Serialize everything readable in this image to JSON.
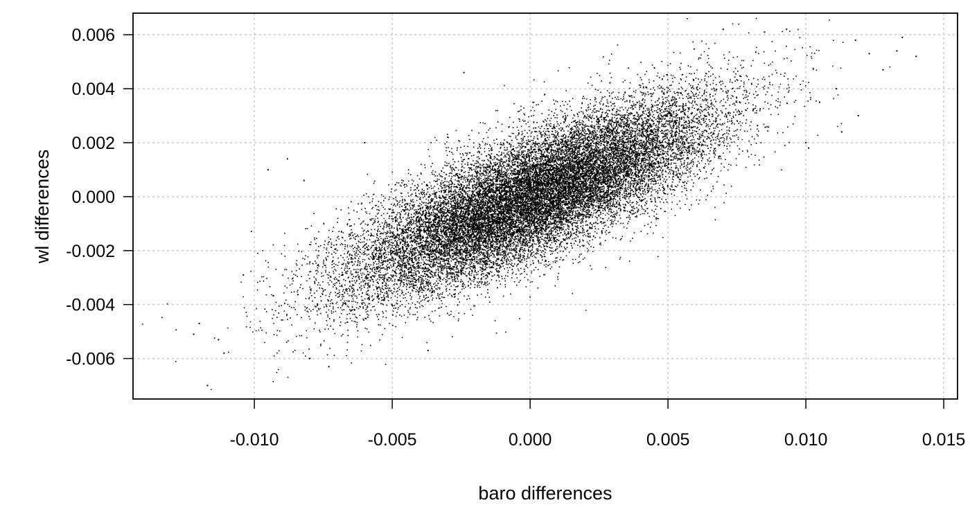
{
  "chart_data": {
    "type": "scatter",
    "title": "",
    "xlabel": "baro differences",
    "ylabel": "wl differences",
    "xlim": [
      -0.0144,
      0.0155
    ],
    "ylim": [
      -0.0075,
      0.0068
    ],
    "x_ticks": [
      -0.01,
      -0.005,
      0.0,
      0.005,
      0.01,
      0.015
    ],
    "x_tick_labels": [
      "-0.010",
      "-0.005",
      "0.000",
      "0.005",
      "0.010",
      "0.015"
    ],
    "y_ticks": [
      -0.006,
      -0.004,
      -0.002,
      0.0,
      0.002,
      0.004,
      0.006
    ],
    "y_tick_labels": [
      "-0.006",
      "-0.004",
      "-0.002",
      "0.000",
      "0.002",
      "0.004",
      "0.006"
    ],
    "grid": true,
    "point_color": "#000000",
    "distribution": {
      "n_points": 22000,
      "x_mean": 0.0,
      "x_sd": 0.0033,
      "y_mean": 0.0,
      "y_sd": 0.0018,
      "correlation": 0.78
    },
    "outlier_points": [
      {
        "x": -0.0117,
        "y": -0.007
      },
      {
        "x": -0.0122,
        "y": -0.0051
      },
      {
        "x": -0.012,
        "y": -0.0047
      },
      {
        "x": -0.0113,
        "y": -0.0053
      },
      {
        "x": -0.0111,
        "y": -0.0058
      },
      {
        "x": -0.0104,
        "y": -0.0029
      },
      {
        "x": -0.0095,
        "y": 0.001
      },
      {
        "x": -0.0088,
        "y": 0.0014
      },
      {
        "x": -0.0082,
        "y": 0.0006
      },
      {
        "x": -0.0073,
        "y": -0.0063
      },
      {
        "x": -0.008,
        "y": -0.006
      },
      {
        "x": -0.0037,
        "y": -0.0057
      },
      {
        "x": -0.0024,
        "y": 0.0046
      },
      {
        "x": -0.006,
        "y": 0.002
      },
      {
        "x": 0.007,
        "y": 0.0062
      },
      {
        "x": 0.0093,
        "y": 0.0062
      },
      {
        "x": 0.0085,
        "y": 0.0061
      },
      {
        "x": 0.0118,
        "y": 0.0058
      },
      {
        "x": 0.0135,
        "y": 0.0059
      },
      {
        "x": 0.014,
        "y": 0.0052
      },
      {
        "x": 0.0133,
        "y": 0.0054
      },
      {
        "x": 0.0128,
        "y": 0.0047
      },
      {
        "x": 0.0123,
        "y": 0.0053
      },
      {
        "x": 0.0119,
        "y": 0.003
      },
      {
        "x": 0.0113,
        "y": 0.0024
      },
      {
        "x": 0.0111,
        "y": 0.004
      },
      {
        "x": 0.0105,
        "y": 0.0035
      },
      {
        "x": 0.0101,
        "y": 0.0018
      },
      {
        "x": 0.01,
        "y": 0.002
      }
    ]
  }
}
